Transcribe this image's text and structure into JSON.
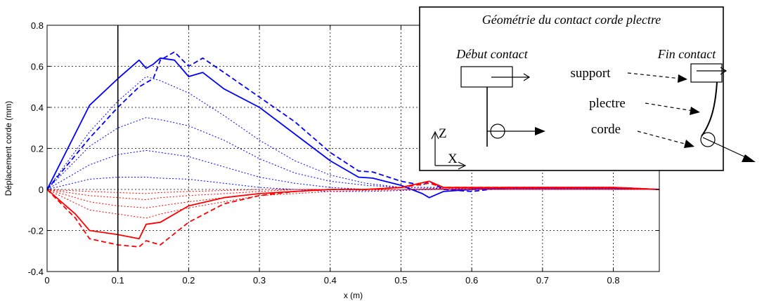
{
  "chart_data": {
    "type": "line",
    "title": "",
    "xlabel": "x (m)",
    "ylabel": "Déplacement corde (mm)",
    "xlim": [
      0,
      0.865
    ],
    "ylim": [
      -0.4,
      0.8
    ],
    "xticks": [
      "0",
      "0.1",
      "0.2",
      "0.3",
      "0.4",
      "0.5",
      "0.6",
      "0.7",
      "0.8"
    ],
    "yticks": [
      "-0.4",
      "-0.2",
      "0",
      "0.2",
      "0.4",
      "0.6",
      "0.8"
    ],
    "grid": true,
    "vertical_marker_x": 0.1,
    "series": [
      {
        "color": "#0000ff",
        "style": "solid",
        "width": 1.8,
        "x": [
          0,
          0.06,
          0.1,
          0.13,
          0.14,
          0.15,
          0.16,
          0.18,
          0.2,
          0.22,
          0.25,
          0.3,
          0.35,
          0.4,
          0.44,
          0.46,
          0.5,
          0.53,
          0.54,
          0.56,
          0.6,
          0.65,
          0.7,
          0.8,
          0.865
        ],
        "y": [
          0,
          0.41,
          0.54,
          0.63,
          0.59,
          0.61,
          0.64,
          0.63,
          0.55,
          0.57,
          0.49,
          0.4,
          0.27,
          0.14,
          0.06,
          0.055,
          0.02,
          -0.02,
          -0.04,
          -0.01,
          0.0,
          0.005,
          0.005,
          0.005,
          0
        ]
      },
      {
        "color": "#0000ff",
        "style": "dashed",
        "width": 1.8,
        "x": [
          0,
          0.06,
          0.1,
          0.13,
          0.14,
          0.15,
          0.16,
          0.18,
          0.2,
          0.22,
          0.25,
          0.3,
          0.35,
          0.4,
          0.44,
          0.46,
          0.5,
          0.53,
          0.54,
          0.56,
          0.6,
          0.65,
          0.7,
          0.8,
          0.865
        ],
        "y": [
          0,
          0.25,
          0.4,
          0.5,
          0.52,
          0.54,
          0.63,
          0.67,
          0.6,
          0.64,
          0.57,
          0.45,
          0.33,
          0.18,
          0.09,
          0.085,
          0.04,
          0.02,
          0.04,
          0.0,
          -0.01,
          0.01,
          0.01,
          0.01,
          0
        ]
      },
      {
        "color": "#0000ff",
        "style": "dotted",
        "width": 1,
        "x": [
          0,
          0.06,
          0.1,
          0.14,
          0.16,
          0.2,
          0.25,
          0.3,
          0.35,
          0.4,
          0.45,
          0.5,
          0.55,
          0.6,
          0.7,
          0.8,
          0.865
        ],
        "y": [
          0,
          0.28,
          0.43,
          0.55,
          0.53,
          0.47,
          0.36,
          0.24,
          0.14,
          0.07,
          0.03,
          0.01,
          0.01,
          0.005,
          0.005,
          0.005,
          0
        ]
      },
      {
        "color": "#0000ff",
        "style": "dotted",
        "width": 1,
        "x": [
          0,
          0.06,
          0.1,
          0.14,
          0.16,
          0.2,
          0.25,
          0.3,
          0.35,
          0.4,
          0.45,
          0.5,
          0.55,
          0.6,
          0.7,
          0.8,
          0.865
        ],
        "y": [
          0,
          0.21,
          0.3,
          0.35,
          0.34,
          0.31,
          0.24,
          0.15,
          0.08,
          0.04,
          0.02,
          0.01,
          0.01,
          0.005,
          0.005,
          0.005,
          0
        ]
      },
      {
        "color": "#0000ff",
        "style": "dotted",
        "width": 1,
        "x": [
          0,
          0.06,
          0.1,
          0.14,
          0.16,
          0.2,
          0.25,
          0.3,
          0.35,
          0.4,
          0.45,
          0.5,
          0.55,
          0.6,
          0.7,
          0.8,
          0.865
        ],
        "y": [
          0,
          0.12,
          0.17,
          0.19,
          0.18,
          0.16,
          0.11,
          0.06,
          0.03,
          0.01,
          0.0,
          0.0,
          0.005,
          0.0,
          0.0,
          0.0,
          0
        ]
      },
      {
        "color": "#0000ff",
        "style": "dotted",
        "width": 1,
        "x": [
          0,
          0.06,
          0.1,
          0.14,
          0.16,
          0.2,
          0.25,
          0.3,
          0.35,
          0.4,
          0.45,
          0.5,
          0.55,
          0.6,
          0.7,
          0.8,
          0.865
        ],
        "y": [
          0,
          0.05,
          0.06,
          0.06,
          0.055,
          0.05,
          0.03,
          0.01,
          0.0,
          -0.01,
          -0.01,
          -0.005,
          0.0,
          0.0,
          0.0,
          0.0,
          0
        ]
      },
      {
        "color": "#ff0000",
        "style": "solid",
        "width": 1.8,
        "x": [
          0,
          0.04,
          0.06,
          0.1,
          0.13,
          0.14,
          0.16,
          0.2,
          0.25,
          0.3,
          0.35,
          0.4,
          0.45,
          0.5,
          0.54,
          0.56,
          0.6,
          0.7,
          0.8,
          0.865
        ],
        "y": [
          0,
          -0.12,
          -0.2,
          -0.22,
          -0.24,
          -0.17,
          -0.16,
          -0.08,
          -0.04,
          -0.02,
          -0.01,
          0.0,
          0.0,
          0.01,
          0.04,
          0.01,
          0.01,
          0.01,
          0.01,
          0
        ]
      },
      {
        "color": "#ff0000",
        "style": "dashed",
        "width": 1.8,
        "x": [
          0,
          0.04,
          0.06,
          0.1,
          0.13,
          0.14,
          0.16,
          0.2,
          0.25,
          0.3,
          0.35,
          0.4,
          0.45,
          0.5,
          0.54,
          0.56,
          0.6,
          0.7,
          0.8,
          0.865
        ],
        "y": [
          0,
          -0.14,
          -0.24,
          -0.27,
          -0.28,
          -0.25,
          -0.27,
          -0.16,
          -0.07,
          -0.03,
          -0.01,
          0.0,
          0.0,
          0.01,
          0.03,
          0.01,
          0.01,
          0.01,
          0.01,
          0
        ]
      },
      {
        "color": "#ff0000",
        "style": "dotted",
        "width": 1,
        "x": [
          0,
          0.06,
          0.1,
          0.14,
          0.16,
          0.2,
          0.25,
          0.3,
          0.35,
          0.4,
          0.5,
          0.6,
          0.7,
          0.8,
          0.865
        ],
        "y": [
          0,
          -0.1,
          -0.12,
          -0.14,
          -0.12,
          -0.09,
          -0.06,
          -0.03,
          -0.02,
          -0.01,
          0.0,
          0.005,
          0.005,
          0.005,
          0
        ]
      },
      {
        "color": "#ff0000",
        "style": "dotted",
        "width": 1,
        "x": [
          0,
          0.06,
          0.1,
          0.14,
          0.16,
          0.2,
          0.25,
          0.3,
          0.35,
          0.4,
          0.5,
          0.6,
          0.7,
          0.8,
          0.865
        ],
        "y": [
          0,
          -0.06,
          -0.08,
          -0.09,
          -0.08,
          -0.06,
          -0.04,
          -0.02,
          -0.01,
          0.0,
          0.0,
          0.005,
          0.005,
          0.005,
          0
        ]
      },
      {
        "color": "#ff0000",
        "style": "dotted",
        "width": 1,
        "x": [
          0,
          0.06,
          0.1,
          0.14,
          0.16,
          0.2,
          0.25,
          0.3,
          0.35,
          0.4,
          0.5,
          0.6,
          0.7,
          0.8,
          0.865
        ],
        "y": [
          0,
          -0.03,
          -0.04,
          -0.05,
          -0.04,
          -0.03,
          -0.02,
          -0.01,
          0.0,
          0.0,
          0.0,
          0.0,
          0.0,
          0.0,
          0
        ]
      },
      {
        "color": "#ff0000",
        "style": "dotted",
        "width": 1,
        "x": [
          0,
          0.06,
          0.1,
          0.14,
          0.16,
          0.2,
          0.25,
          0.3,
          0.35,
          0.4,
          0.5,
          0.6,
          0.7,
          0.8,
          0.865
        ],
        "y": [
          0,
          -0.01,
          -0.015,
          -0.02,
          -0.015,
          -0.01,
          -0.005,
          0.0,
          0.0,
          0.0,
          0.0,
          0.0,
          0.0,
          0.0,
          0
        ]
      }
    ]
  },
  "inset": {
    "title": "Géométrie du contact corde plectre",
    "start_label": "Début contact",
    "end_label": "Fin contact",
    "support_label": "support",
    "plectre_label": "plectre",
    "corde_label": "corde",
    "axis_z": "Z",
    "axis_x": "X"
  }
}
